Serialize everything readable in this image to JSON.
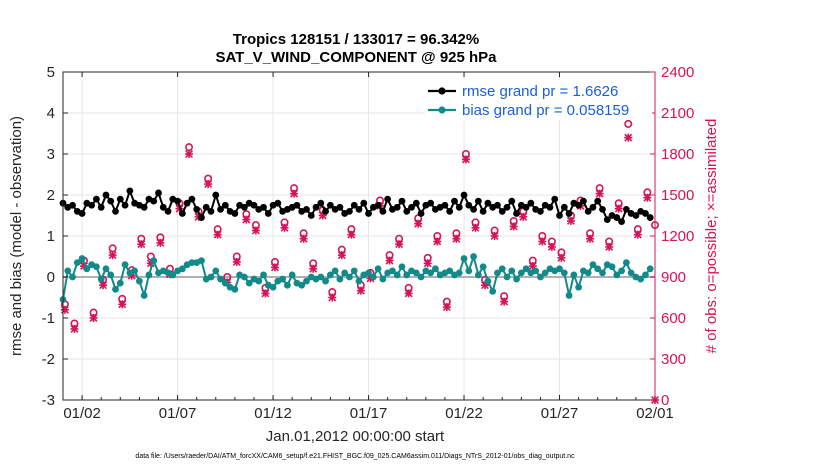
{
  "chart_data": {
    "type": "line",
    "title": "Tropics 128151 / 133017 = 96.342%",
    "subtitle": "SAT_V_WIND_COMPONENT @ 925 hPa",
    "xlabel": "Jan.01,2012 00:00:00 start",
    "ylabel": "rmse and bias (model - observation)",
    "ylabel_right": "# of obs: o=possible; ×=assimilated",
    "xlim": [
      0,
      31
    ],
    "ylim": [
      -3,
      5
    ],
    "ylim_right": [
      0,
      2400
    ],
    "x_ticks": [
      1,
      6,
      11,
      16,
      21,
      26,
      31
    ],
    "x_tick_labels": [
      "01/02",
      "01/07",
      "01/12",
      "01/17",
      "01/22",
      "01/27",
      "02/01"
    ],
    "y_ticks": [
      -3,
      -2,
      -1,
      0,
      1,
      2,
      3,
      4,
      5
    ],
    "y_tick_labels": [
      "-3",
      "-2",
      "-1",
      "0",
      "1",
      "2",
      "3",
      "4",
      "5"
    ],
    "y_ticks_right": [
      0,
      300,
      600,
      900,
      1200,
      1500,
      1800,
      2100,
      2400
    ],
    "y_tick_labels_right": [
      "0",
      "300",
      "600",
      "900",
      "1200",
      "1500",
      "1800",
      "2100",
      "2400"
    ],
    "grid": true,
    "legend_position": "top-right",
    "zero_line": 0,
    "footnote": "data file: /Users/raeder/DAI/ATM_forcXX/CAM6_setup/f.e21.FHIST_BGC.f09_025.CAM6assim.011/Diags_NTrS_2012-01/obs_diag_output.nc",
    "series": [
      {
        "name": "rmse",
        "legend": "rmse grand pr = 1.6626",
        "color": "#000000",
        "axis": "left",
        "x": [
          0.0,
          0.25,
          0.5,
          0.75,
          1.0,
          1.25,
          1.5,
          1.75,
          2.0,
          2.25,
          2.5,
          2.75,
          3.0,
          3.25,
          3.5,
          3.75,
          4.0,
          4.25,
          4.5,
          4.75,
          5.0,
          5.25,
          5.5,
          5.75,
          6.0,
          6.25,
          6.5,
          6.75,
          7.0,
          7.25,
          7.5,
          7.75,
          8.0,
          8.25,
          8.5,
          8.75,
          9.0,
          9.25,
          9.5,
          9.75,
          10.0,
          10.25,
          10.5,
          10.75,
          11.0,
          11.25,
          11.5,
          11.75,
          12.0,
          12.25,
          12.5,
          12.75,
          13.0,
          13.25,
          13.5,
          13.75,
          14.0,
          14.25,
          14.5,
          14.75,
          15.0,
          15.25,
          15.5,
          15.75,
          16.0,
          16.25,
          16.5,
          16.75,
          17.0,
          17.25,
          17.5,
          17.75,
          18.0,
          18.25,
          18.5,
          18.75,
          19.0,
          19.25,
          19.5,
          19.75,
          20.0,
          20.25,
          20.5,
          20.75,
          21.0,
          21.25,
          21.5,
          21.75,
          22.0,
          22.25,
          22.5,
          22.75,
          23.0,
          23.25,
          23.5,
          23.75,
          24.0,
          24.25,
          24.5,
          24.75,
          25.0,
          25.25,
          25.5,
          25.75,
          26.0,
          26.25,
          26.5,
          26.75,
          27.0,
          27.25,
          27.5,
          27.75,
          28.0,
          28.25,
          28.5,
          28.75,
          29.0,
          29.25,
          29.5,
          29.75,
          30.0,
          30.25,
          30.5,
          30.75
        ],
        "values": [
          1.8,
          1.7,
          1.75,
          1.6,
          1.55,
          1.8,
          1.75,
          1.9,
          1.7,
          2.0,
          1.85,
          1.6,
          1.9,
          1.75,
          2.1,
          1.8,
          1.75,
          1.7,
          1.9,
          1.85,
          2.05,
          1.7,
          1.6,
          1.9,
          1.85,
          1.55,
          1.8,
          1.9,
          1.65,
          1.45,
          1.7,
          1.6,
          2.0,
          1.65,
          1.75,
          1.6,
          1.55,
          1.75,
          1.7,
          1.8,
          1.75,
          1.65,
          1.7,
          1.55,
          1.75,
          1.8,
          1.6,
          1.65,
          1.7,
          1.75,
          1.6,
          1.65,
          1.5,
          1.7,
          1.8,
          1.6,
          1.75,
          1.65,
          1.7,
          1.55,
          1.6,
          1.75,
          1.65,
          1.8,
          1.55,
          1.7,
          1.75,
          1.6,
          1.9,
          1.65,
          1.7,
          1.85,
          1.6,
          1.7,
          1.8,
          1.55,
          1.75,
          1.8,
          1.65,
          1.7,
          1.75,
          1.6,
          1.85,
          1.7,
          2.0,
          1.75,
          1.65,
          1.85,
          1.6,
          1.8,
          1.7,
          1.75,
          1.6,
          1.7,
          1.85,
          1.55,
          1.75,
          1.7,
          1.8,
          1.65,
          1.6,
          1.75,
          1.7,
          1.9,
          1.5,
          1.7,
          1.55,
          1.8,
          1.75,
          1.85,
          1.6,
          1.7,
          1.85,
          1.65,
          1.4,
          1.5,
          1.45,
          1.35,
          1.65,
          1.55,
          1.5,
          1.6,
          1.55,
          1.45
        ]
      },
      {
        "name": "bias",
        "legend": "bias grand pr = 0.058159",
        "color": "#138a8a",
        "axis": "left",
        "x": [
          0.0,
          0.25,
          0.5,
          0.75,
          1.0,
          1.25,
          1.5,
          1.75,
          2.0,
          2.25,
          2.5,
          2.75,
          3.0,
          3.25,
          3.5,
          3.75,
          4.0,
          4.25,
          4.5,
          4.75,
          5.0,
          5.25,
          5.5,
          5.75,
          6.0,
          6.25,
          6.5,
          6.75,
          7.0,
          7.25,
          7.5,
          7.75,
          8.0,
          8.25,
          8.5,
          8.75,
          9.0,
          9.25,
          9.5,
          9.75,
          10.0,
          10.25,
          10.5,
          10.75,
          11.0,
          11.25,
          11.5,
          11.75,
          12.0,
          12.25,
          12.5,
          12.75,
          13.0,
          13.25,
          13.5,
          13.75,
          14.0,
          14.25,
          14.5,
          14.75,
          15.0,
          15.25,
          15.5,
          15.75,
          16.0,
          16.25,
          16.5,
          16.75,
          17.0,
          17.25,
          17.5,
          17.75,
          18.0,
          18.25,
          18.5,
          18.75,
          19.0,
          19.25,
          19.5,
          19.75,
          20.0,
          20.25,
          20.5,
          20.75,
          21.0,
          21.25,
          21.5,
          21.75,
          22.0,
          22.25,
          22.5,
          22.75,
          23.0,
          23.25,
          23.5,
          23.75,
          24.0,
          24.25,
          24.5,
          24.75,
          25.0,
          25.25,
          25.5,
          25.75,
          26.0,
          26.25,
          26.5,
          26.75,
          27.0,
          27.25,
          27.5,
          27.75,
          28.0,
          28.25,
          28.5,
          28.75,
          29.0,
          29.25,
          29.5,
          29.75,
          30.0,
          30.25,
          30.5,
          30.75
        ],
        "values": [
          -0.55,
          0.15,
          0.0,
          0.35,
          0.45,
          0.2,
          0.3,
          0.25,
          -0.05,
          0.2,
          0.05,
          -0.3,
          -0.15,
          0.3,
          0.1,
          0.15,
          -0.1,
          -0.45,
          0.05,
          0.4,
          0.1,
          0.15,
          0.1,
          0.05,
          0.15,
          0.2,
          0.3,
          0.35,
          0.35,
          0.4,
          -0.05,
          0.0,
          0.15,
          -0.05,
          -0.15,
          -0.25,
          -0.3,
          0.05,
          0.0,
          -0.15,
          -0.05,
          -0.1,
          0.05,
          -0.2,
          -0.25,
          -0.1,
          -0.05,
          -0.2,
          0.05,
          -0.15,
          -0.2,
          -0.1,
          0.0,
          -0.05,
          0.0,
          -0.1,
          0.05,
          0.15,
          -0.05,
          0.1,
          0.0,
          0.15,
          -0.1,
          0.05,
          0.1,
          0.0,
          0.2,
          -0.05,
          0.1,
          0.15,
          0.05,
          0.25,
          0.05,
          0.15,
          0.1,
          0.0,
          0.15,
          0.1,
          0.2,
          0.05,
          0.1,
          0.15,
          0.05,
          0.1,
          0.45,
          0.15,
          0.5,
          0.05,
          0.25,
          -0.1,
          -0.35,
          0.1,
          0.2,
          0.0,
          0.15,
          -0.05,
          0.1,
          0.2,
          0.1,
          0.15,
          0.0,
          0.1,
          0.2,
          0.15,
          0.2,
          0.1,
          -0.45,
          0.05,
          -0.25,
          0.15,
          0.1,
          0.3,
          0.2,
          0.1,
          0.3,
          0.25,
          0.05,
          0.15,
          0.35,
          0.1,
          0.0,
          -0.05,
          0.05,
          0.2
        ]
      },
      {
        "name": "obs_possible",
        "marker": "o",
        "color": "#d4145a",
        "axis": "right",
        "x": [
          0.1,
          0.6,
          1.1,
          1.6,
          2.1,
          2.6,
          3.1,
          3.6,
          4.1,
          4.6,
          5.1,
          5.6,
          6.1,
          6.6,
          7.1,
          7.6,
          8.1,
          8.6,
          9.1,
          9.6,
          10.1,
          10.6,
          11.1,
          11.6,
          12.1,
          12.6,
          13.1,
          13.6,
          14.1,
          14.6,
          15.1,
          15.6,
          16.1,
          16.6,
          17.1,
          17.6,
          18.1,
          18.6,
          19.1,
          19.6,
          20.1,
          20.6,
          21.1,
          21.6,
          22.1,
          22.6,
          23.1,
          23.6,
          24.1,
          24.6,
          25.1,
          25.6,
          26.1,
          26.6,
          27.1,
          27.6,
          28.1,
          28.6,
          29.1,
          29.6,
          30.1,
          30.6,
          31.0
        ],
        "values": [
          700,
          560,
          1020,
          640,
          880,
          1110,
          740,
          950,
          1180,
          1050,
          1190,
          960,
          1440,
          1850,
          1380,
          1620,
          1250,
          900,
          1050,
          1360,
          1280,
          820,
          1010,
          1300,
          1550,
          1220,
          1000,
          1390,
          790,
          1100,
          1250,
          840,
          930,
          1460,
          1060,
          1180,
          820,
          1330,
          1040,
          1200,
          720,
          1220,
          1800,
          1300,
          880,
          1240,
          760,
          1310,
          1380,
          1020,
          1200,
          1160,
          1080,
          1350,
          1460,
          1220,
          1550,
          1160,
          1440,
          2020,
          1250,
          1520,
          1280
        ]
      },
      {
        "name": "obs_assimilated",
        "marker": "x",
        "color": "#d4145a",
        "axis": "right",
        "x": [
          0.1,
          0.6,
          1.1,
          1.6,
          2.1,
          2.6,
          3.1,
          3.6,
          4.1,
          4.6,
          5.1,
          5.6,
          6.1,
          6.6,
          7.1,
          7.6,
          8.1,
          8.6,
          9.1,
          9.6,
          10.1,
          10.6,
          11.1,
          11.6,
          12.1,
          12.6,
          13.1,
          13.6,
          14.1,
          14.6,
          15.1,
          15.6,
          16.1,
          16.6,
          17.1,
          17.6,
          18.1,
          18.6,
          19.1,
          19.6,
          20.1,
          20.6,
          21.1,
          21.6,
          22.1,
          22.6,
          23.1,
          23.6,
          24.1,
          24.6,
          25.1,
          25.6,
          26.1,
          26.6,
          27.1,
          27.6,
          28.1,
          28.6,
          29.1,
          29.6,
          30.1,
          30.6,
          31.0
        ],
        "values": [
          660,
          520,
          980,
          600,
          840,
          1060,
          700,
          910,
          1140,
          1000,
          1150,
          920,
          1400,
          1800,
          1340,
          1580,
          1210,
          860,
          1010,
          1320,
          1240,
          780,
          970,
          1260,
          1510,
          1180,
          960,
          1350,
          750,
          1060,
          1210,
          800,
          890,
          1420,
          1020,
          1140,
          780,
          1290,
          1000,
          1160,
          680,
          1180,
          1760,
          1260,
          840,
          1200,
          720,
          1270,
          1340,
          980,
          1160,
          1120,
          1040,
          1310,
          1420,
          1180,
          1510,
          1120,
          1400,
          1920,
          1210,
          1480,
          0
        ]
      }
    ]
  }
}
